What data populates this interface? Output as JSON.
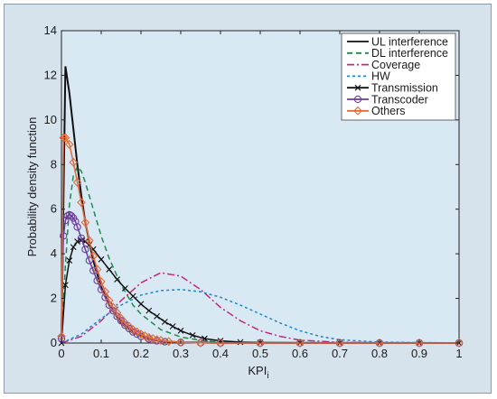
{
  "chart_data": {
    "type": "line",
    "title": "",
    "xlabel": "KPI",
    "xlabel_subscript": "i",
    "ylabel": "Probability density function",
    "xlim": [
      0,
      1
    ],
    "ylim": [
      0,
      14
    ],
    "xticks": [
      "0",
      "0.1",
      "0.2",
      "0.3",
      "0.4",
      "0.5",
      "0.6",
      "0.7",
      "0.8",
      "0.9",
      "1"
    ],
    "yticks": [
      "0",
      "2",
      "4",
      "6",
      "8",
      "10",
      "12",
      "14"
    ],
    "grid": false,
    "legend_position": "top-right",
    "series": [
      {
        "name": "UL interference",
        "color": "#111111",
        "line": "solid",
        "x": [
          0,
          0.01,
          0.02,
          0.03,
          0.04,
          0.05,
          0.06,
          0.08,
          0.1,
          0.12,
          0.15,
          0.18,
          0.22,
          0.26,
          0.3,
          0.4,
          1.0
        ],
        "y": [
          0.3,
          12.4,
          11.2,
          9.6,
          8.0,
          6.6,
          5.4,
          3.7,
          2.5,
          1.7,
          0.9,
          0.45,
          0.18,
          0.07,
          0.03,
          0.01,
          0.0
        ]
      },
      {
        "name": "DL interference",
        "color": "#1f8a4c",
        "line": "dashed",
        "x": [
          0,
          0.01,
          0.02,
          0.03,
          0.04,
          0.05,
          0.06,
          0.08,
          0.1,
          0.12,
          0.15,
          0.18,
          0.2,
          0.25,
          0.3,
          0.35,
          0.4,
          0.5,
          1.0
        ],
        "y": [
          0.0,
          3.5,
          6.2,
          7.5,
          7.9,
          7.7,
          7.2,
          6.0,
          4.8,
          3.8,
          2.6,
          1.7,
          1.3,
          0.6,
          0.27,
          0.12,
          0.05,
          0.01,
          0.0
        ]
      },
      {
        "name": "Coverage",
        "color": "#c0287c",
        "line": "dashdot",
        "x": [
          0,
          0.05,
          0.1,
          0.15,
          0.2,
          0.25,
          0.3,
          0.35,
          0.4,
          0.45,
          0.5,
          0.55,
          0.6,
          0.7,
          1.0
        ],
        "y": [
          0.0,
          0.3,
          1.0,
          1.9,
          2.7,
          3.15,
          3.0,
          2.4,
          1.6,
          1.0,
          0.55,
          0.3,
          0.13,
          0.03,
          0.0
        ]
      },
      {
        "name": "HW",
        "color": "#1e88c8",
        "line": "dotted",
        "x": [
          0,
          0.05,
          0.1,
          0.15,
          0.2,
          0.25,
          0.3,
          0.35,
          0.4,
          0.45,
          0.5,
          0.55,
          0.6,
          0.65,
          0.7,
          0.8,
          1.0
        ],
        "y": [
          0.0,
          0.4,
          1.1,
          1.7,
          2.15,
          2.35,
          2.4,
          2.3,
          2.05,
          1.7,
          1.3,
          0.9,
          0.55,
          0.3,
          0.15,
          0.04,
          0.0
        ]
      },
      {
        "name": "Transmission",
        "color": "#111111",
        "line": "solid",
        "marker": "x",
        "x": [
          0,
          0.01,
          0.02,
          0.03,
          0.04,
          0.05,
          0.06,
          0.07,
          0.08,
          0.1,
          0.12,
          0.14,
          0.16,
          0.18,
          0.2,
          0.22,
          0.24,
          0.26,
          0.28,
          0.3,
          0.33,
          0.36,
          0.4,
          0.45,
          0.5,
          0.6,
          0.7,
          0.8,
          0.9,
          1.0
        ],
        "y": [
          0.0,
          2.6,
          3.7,
          4.3,
          4.55,
          4.6,
          4.55,
          4.4,
          4.2,
          3.75,
          3.3,
          2.85,
          2.45,
          2.1,
          1.75,
          1.45,
          1.2,
          0.95,
          0.75,
          0.55,
          0.35,
          0.2,
          0.1,
          0.04,
          0.02,
          0.01,
          0.0,
          0.0,
          0.0,
          0.0
        ]
      },
      {
        "name": "Transcoder",
        "color": "#6a3d9a",
        "line": "solid",
        "marker": "o",
        "x": [
          0,
          0.005,
          0.01,
          0.015,
          0.02,
          0.025,
          0.03,
          0.035,
          0.04,
          0.05,
          0.06,
          0.07,
          0.08,
          0.09,
          0.1,
          0.11,
          0.12,
          0.13,
          0.14,
          0.15,
          0.16,
          0.17,
          0.18,
          0.19,
          0.2,
          0.22,
          0.24,
          0.26,
          0.3,
          0.35,
          0.4,
          0.5,
          0.6,
          0.7,
          0.8,
          0.9,
          1.0
        ],
        "y": [
          0.2,
          4.8,
          5.5,
          5.7,
          5.75,
          5.7,
          5.6,
          5.45,
          5.2,
          4.7,
          4.2,
          3.7,
          3.25,
          2.8,
          2.4,
          2.05,
          1.7,
          1.45,
          1.2,
          1.0,
          0.8,
          0.65,
          0.5,
          0.4,
          0.3,
          0.18,
          0.1,
          0.06,
          0.03,
          0.01,
          0.0,
          0.0,
          0.0,
          0.0,
          0.0,
          0.0,
          0.0
        ]
      },
      {
        "name": "Others",
        "color": "#e06a3a",
        "line": "solid",
        "marker": "diamond",
        "x": [
          0,
          0.005,
          0.01,
          0.02,
          0.03,
          0.04,
          0.05,
          0.06,
          0.07,
          0.08,
          0.09,
          0.1,
          0.11,
          0.12,
          0.13,
          0.14,
          0.15,
          0.16,
          0.17,
          0.18,
          0.19,
          0.2,
          0.21,
          0.22,
          0.23,
          0.24,
          0.25,
          0.27,
          0.3,
          0.35,
          0.4,
          0.5,
          0.6,
          0.7,
          0.8,
          0.9,
          1.0
        ],
        "y": [
          0.3,
          9.2,
          9.2,
          8.9,
          8.1,
          7.2,
          6.3,
          5.4,
          4.6,
          3.9,
          3.3,
          2.75,
          2.3,
          1.9,
          1.6,
          1.35,
          1.1,
          0.9,
          0.75,
          0.6,
          0.5,
          0.4,
          0.32,
          0.25,
          0.2,
          0.15,
          0.12,
          0.07,
          0.03,
          0.01,
          0.0,
          0.0,
          0.0,
          0.0,
          0.0,
          0.0,
          0.0
        ]
      }
    ]
  }
}
